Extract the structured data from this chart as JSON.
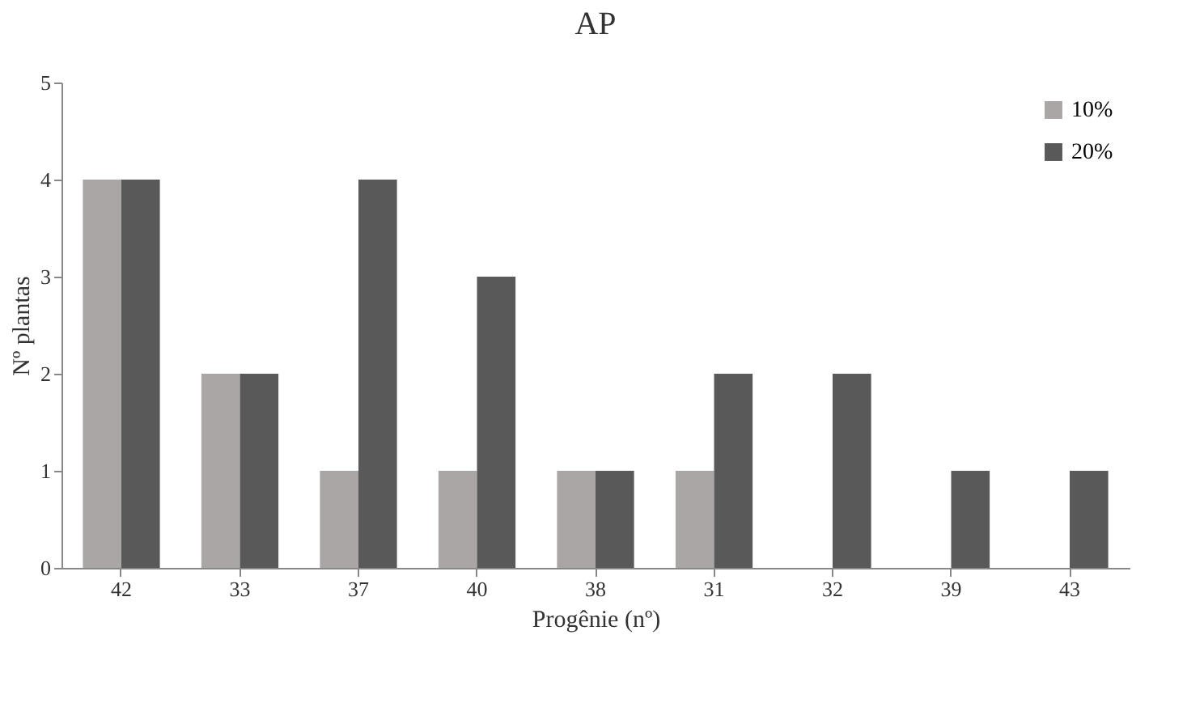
{
  "chart_data": {
    "type": "bar",
    "title": "AP",
    "xlabel": "Progênie (nº)",
    "ylabel": "Nº plantas",
    "categories": [
      "42",
      "33",
      "37",
      "40",
      "38",
      "31",
      "32",
      "39",
      "43"
    ],
    "series": [
      {
        "name": "10%",
        "color": "#aaa6a6",
        "values": [
          4,
          2,
          1,
          1,
          1,
          1,
          null,
          null,
          null
        ]
      },
      {
        "name": "20%",
        "color": "#595959",
        "values": [
          4,
          2,
          4,
          3,
          1,
          2,
          2,
          1,
          1
        ]
      }
    ],
    "ylim": [
      0,
      5
    ],
    "yticks": [
      0,
      1,
      2,
      3,
      4,
      5
    ],
    "grid": false,
    "legend": "top right"
  }
}
